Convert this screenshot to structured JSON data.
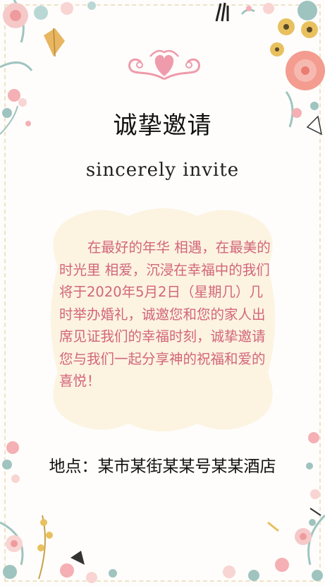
{
  "invitation": {
    "title": "诚挚邀请",
    "subtitle": "sincerely invite",
    "message": "在最好的年华 相遇，在最美的时光里 相爱，沉浸在幸福中的我们将于2020年5月2日（星期几）几时举办婚礼，诚邀您和您的家人出席见证我们的幸福时刻，诚挚邀请您与我们一起分享神的祝福和爱的喜悦！",
    "location": "地点：某市某街某某号某某酒店"
  },
  "colors": {
    "title": "#111111",
    "message": "#d2667a",
    "ornament": "#e98a9a",
    "plaque": "#fbf1dc",
    "frame": "#eee3c8"
  }
}
